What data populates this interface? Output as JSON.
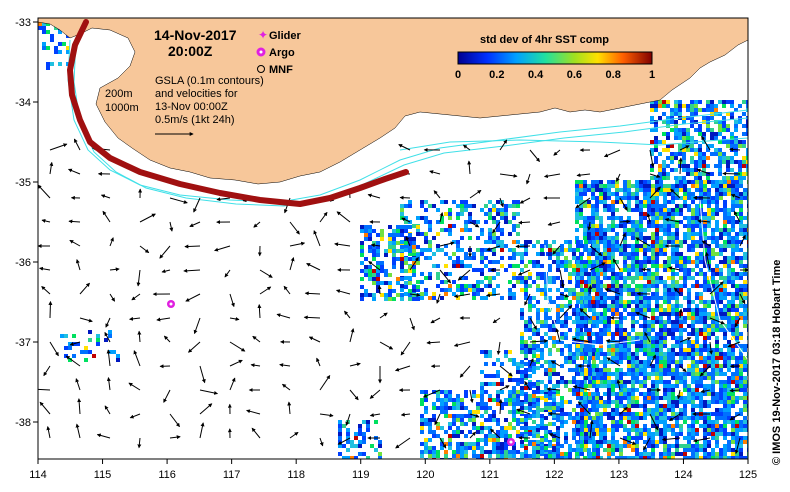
{
  "header": {
    "date": "14-Nov-2017",
    "time": "20:00Z"
  },
  "legend": {
    "glider": "Glider",
    "argo": "Argo",
    "mnf": "MNF",
    "gsla_note": [
      "GSLA (0.1m contours)",
      "and velocities for",
      "13-Nov 00:00Z"
    ],
    "velocity_scale": "0.5m/s (1kt 24h)",
    "isobath_200": "200m",
    "isobath_1000": "1000m"
  },
  "colorbar": {
    "title": "std dev of 4hr SST comp",
    "ticks": [
      "0",
      "0.2",
      "0.4",
      "0.6",
      "0.8",
      "1"
    ]
  },
  "axes": {
    "lon_ticks": [
      "114",
      "115",
      "116",
      "117",
      "118",
      "119",
      "120",
      "121",
      "122",
      "123",
      "124",
      "125"
    ],
    "lat_ticks": [
      "-33",
      "-34",
      "-35",
      "-36",
      "-37",
      "-38"
    ]
  },
  "credit": "© IMOS 19-Nov-2017 03:18 Hobart Time",
  "colors": {
    "land": "#f7c79a",
    "glider_track": "#a01010",
    "argo": "#e020e0",
    "isobath": "#40e0e8"
  }
}
